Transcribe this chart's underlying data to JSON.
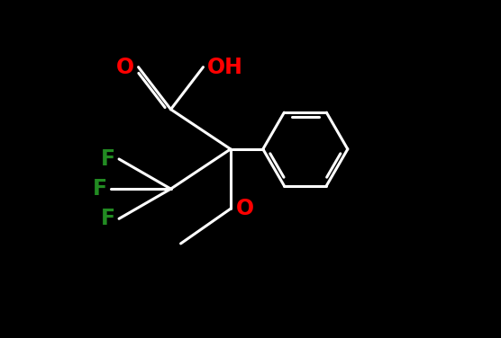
{
  "background_color": "#000000",
  "bond_color": "#ffffff",
  "atom_colors": {
    "O": "#ff0000",
    "F": "#228B22",
    "C": "#ffffff"
  },
  "font_size": 17,
  "line_width": 2.2,
  "xlim": [
    0,
    10
  ],
  "ylim": [
    0,
    6.8
  ]
}
